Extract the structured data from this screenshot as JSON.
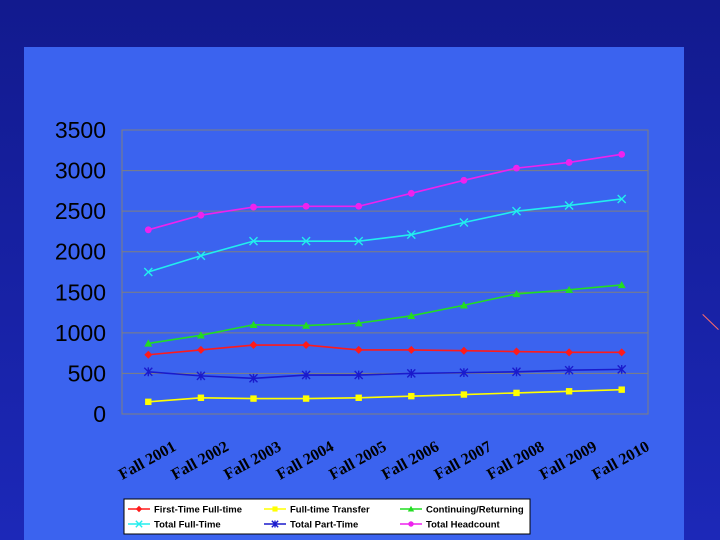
{
  "chart_data": {
    "type": "line",
    "title": "",
    "xlabel": "",
    "ylabel": "",
    "ylim": [
      0,
      3500
    ],
    "yticks": [
      0,
      500,
      1000,
      1500,
      2000,
      2500,
      3000,
      3500
    ],
    "yticks_text": [
      "0",
      "500",
      "1000",
      "1500",
      "2000",
      "2500",
      "3000",
      "3500"
    ],
    "grid": "horizontal",
    "legend_position": "bottom",
    "categories": [
      "Fall 2001",
      "Fall 2002",
      "Fall 2003",
      "Fall 2004",
      "Fall 2005",
      "Fall 2006",
      "Fall 2007",
      "Fall 2008",
      "Fall 2009",
      "Fall 2010"
    ],
    "series": [
      {
        "name": "First-Time Full-time",
        "color": "#ff1a1a",
        "marker": "diamond",
        "values": [
          730,
          790,
          850,
          850,
          790,
          790,
          780,
          770,
          760,
          760
        ]
      },
      {
        "name": "Full-time Transfer",
        "color": "#ffff00",
        "marker": "square",
        "values": [
          150,
          200,
          190,
          190,
          200,
          220,
          240,
          260,
          280,
          300
        ]
      },
      {
        "name": "Continuing/Returning",
        "color": "#22dd22",
        "marker": "triangle",
        "values": [
          870,
          970,
          1100,
          1090,
          1120,
          1210,
          1340,
          1480,
          1530,
          1590
        ]
      },
      {
        "name": "Total Full-Time",
        "color": "#22eeee",
        "marker": "x",
        "values": [
          1750,
          1950,
          2130,
          2130,
          2130,
          2210,
          2360,
          2500,
          2570,
          2650
        ]
      },
      {
        "name": "Total Part-Time",
        "color": "#1a1acc",
        "marker": "star",
        "values": [
          520,
          470,
          440,
          480,
          480,
          500,
          510,
          520,
          540,
          550
        ]
      },
      {
        "name": "Total Headcount",
        "color": "#ee22ee",
        "marker": "circle",
        "values": [
          2270,
          2450,
          2550,
          2560,
          2560,
          2720,
          2880,
          3030,
          3100,
          3200
        ]
      }
    ]
  }
}
